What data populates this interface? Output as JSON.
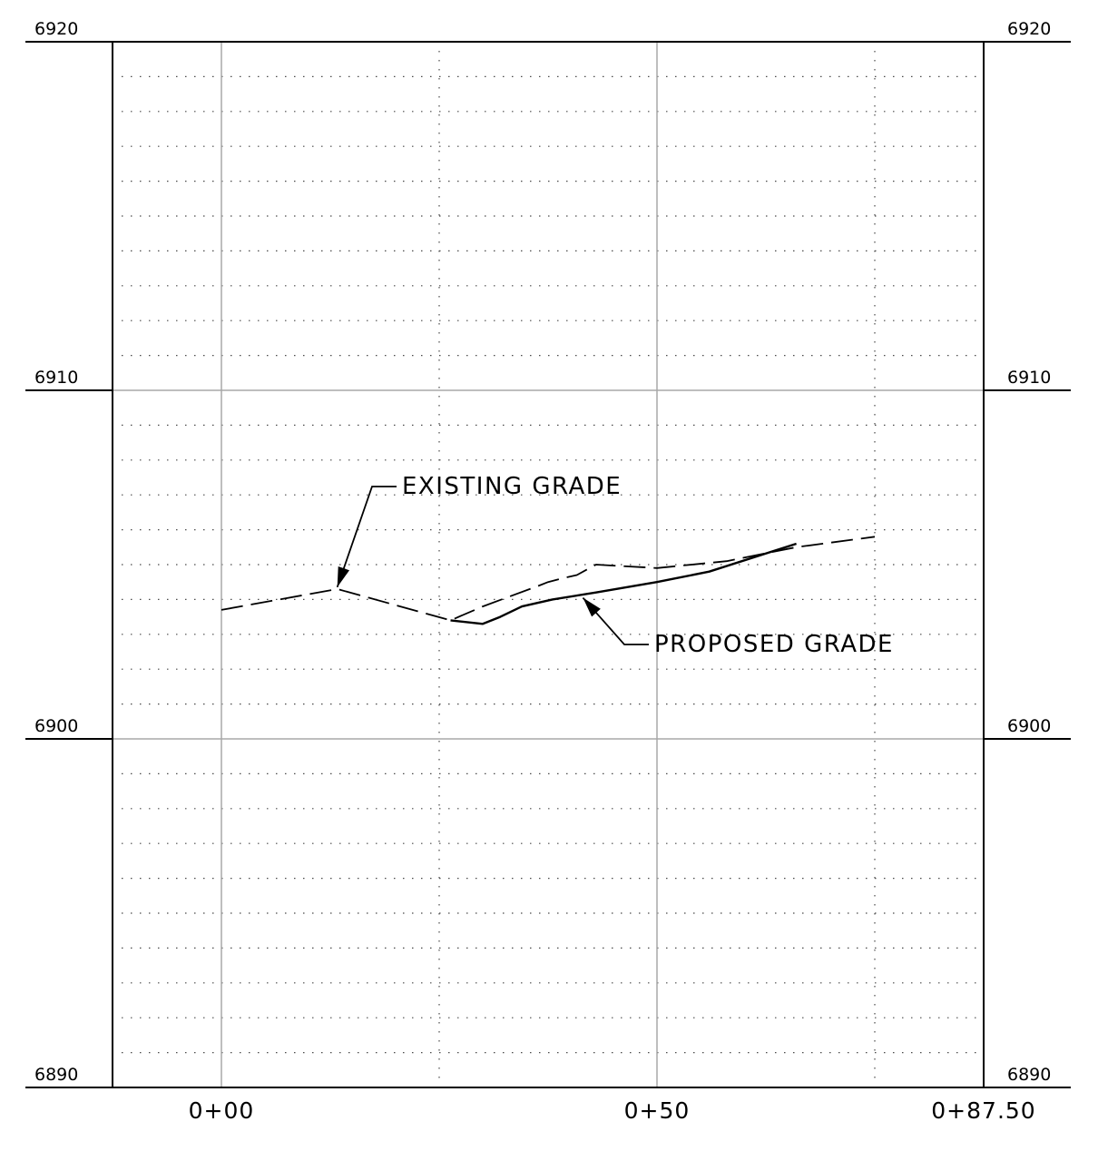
{
  "chart_data": {
    "type": "line",
    "title": "",
    "xlabel": "",
    "ylabel": "",
    "xlim": [
      -12.5,
      87.5
    ],
    "ylim": [
      6890,
      6920
    ],
    "x_ticks": [
      {
        "value": 0,
        "label": "0+00"
      },
      {
        "value": 50,
        "label": "0+50"
      },
      {
        "value": 87.5,
        "label": "0+87.50"
      }
    ],
    "y_ticks": [
      {
        "value": 6890,
        "label": "6890"
      },
      {
        "value": 6900,
        "label": "6900"
      },
      {
        "value": 6910,
        "label": "6910"
      },
      {
        "value": 6920,
        "label": "6920"
      }
    ],
    "x_minor_gridlines": [
      25,
      75
    ],
    "y_minor_step": 1,
    "grid": true,
    "series": [
      {
        "name": "EXISTING GRADE",
        "style": "dashed",
        "x": [
          0,
          13.3,
          26.3,
          30,
          36.5,
          37.5,
          39,
          40.8,
          43,
          50,
          58,
          66,
          75
        ],
        "y": [
          6903.7,
          6904.3,
          6903.4,
          6903.8,
          6904.4,
          6904.5,
          6904.6,
          6904.7,
          6905,
          6904.9,
          6905.1,
          6905.5,
          6905.8
        ]
      },
      {
        "name": "PROPOSED GRADE",
        "style": "solid",
        "x": [
          26.3,
          30,
          32,
          34.5,
          38,
          43,
          50,
          56,
          66
        ],
        "y": [
          6903.4,
          6903.3,
          6903.5,
          6903.8,
          6904,
          6904.2,
          6904.5,
          6904.8,
          6905.6
        ]
      }
    ],
    "annotations": [
      {
        "text": "EXISTING GRADE",
        "series": 0,
        "arrow_to": {
          "x": 13.3,
          "y": 6904.3
        }
      },
      {
        "text": "PROPOSED GRADE",
        "series": 1,
        "arrow_to": {
          "x": 41.5,
          "y": 6904.1
        }
      }
    ],
    "colors": {
      "axis": "#000000",
      "major_grid": "#a8a8a8",
      "minor_grid": "#4a4a4a",
      "line": "#000000"
    }
  }
}
